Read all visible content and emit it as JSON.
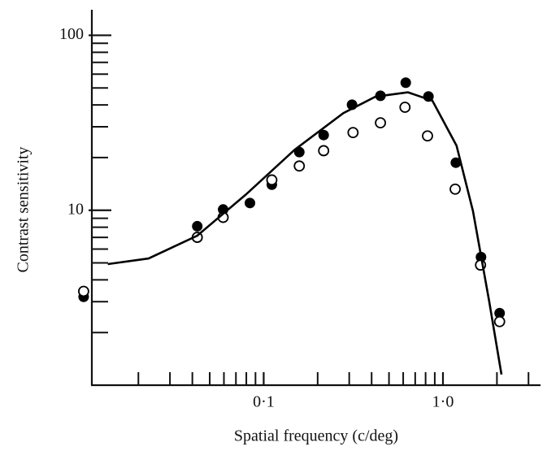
{
  "chart_data": {
    "type": "scatter",
    "xlabel": "Spatial frequency (c/deg)",
    "ylabel": "Contrast sensitivity",
    "xscale": "log",
    "yscale": "log",
    "xlim": [
      0.011,
      3.5
    ],
    "ylim": [
      1,
      140
    ],
    "xticks": [
      {
        "value": 0.1,
        "label": "0·1"
      },
      {
        "value": 1,
        "label": "1·0"
      }
    ],
    "yticks": [
      10,
      100
    ],
    "x_minor_ticks": [
      0.02,
      0.03,
      0.04,
      0.05,
      0.06,
      0.07,
      0.08,
      0.09,
      0.2,
      0.3,
      0.4,
      0.5,
      0.6,
      0.7,
      0.8,
      0.9,
      2,
      3
    ],
    "y_minor_ticks": [
      2,
      3,
      4,
      5,
      6,
      7,
      8,
      9,
      20,
      30,
      40,
      50,
      60,
      70,
      80,
      90
    ],
    "series": [
      {
        "marker": "filled",
        "color": "#000000",
        "x": [
          0.0099,
          0.0426,
          0.0594,
          0.0838,
          0.111,
          0.158,
          0.216,
          0.311,
          0.448,
          0.62,
          0.83,
          1.18,
          1.63,
          2.07
        ],
        "values": [
          3.2,
          8.1,
          10.1,
          11.0,
          14.0,
          21.5,
          26.9,
          40.1,
          45.1,
          53.6,
          44.7,
          18.7,
          5.4,
          2.58
        ]
      },
      {
        "marker": "open",
        "color": "#000000",
        "x": [
          0.0099,
          0.0426,
          0.0594,
          0.111,
          0.158,
          0.216,
          0.315,
          0.448,
          0.614,
          0.82,
          1.17,
          1.62,
          2.07
        ],
        "values": [
          3.44,
          7.0,
          9.1,
          14.9,
          17.9,
          21.9,
          27.8,
          31.6,
          38.8,
          26.6,
          13.2,
          4.86,
          2.31
        ]
      },
      {
        "marker": "line",
        "color": "#000000",
        "x": [
          0.0135,
          0.0228,
          0.0426,
          0.0795,
          0.149,
          0.278,
          0.421,
          0.638,
          0.873,
          1.19,
          1.47,
          1.81,
          2.12
        ],
        "values": [
          4.92,
          5.3,
          7.16,
          12.3,
          22.2,
          35.9,
          44.6,
          47.2,
          42.3,
          23.4,
          9.9,
          3.03,
          1.15
        ]
      }
    ]
  }
}
